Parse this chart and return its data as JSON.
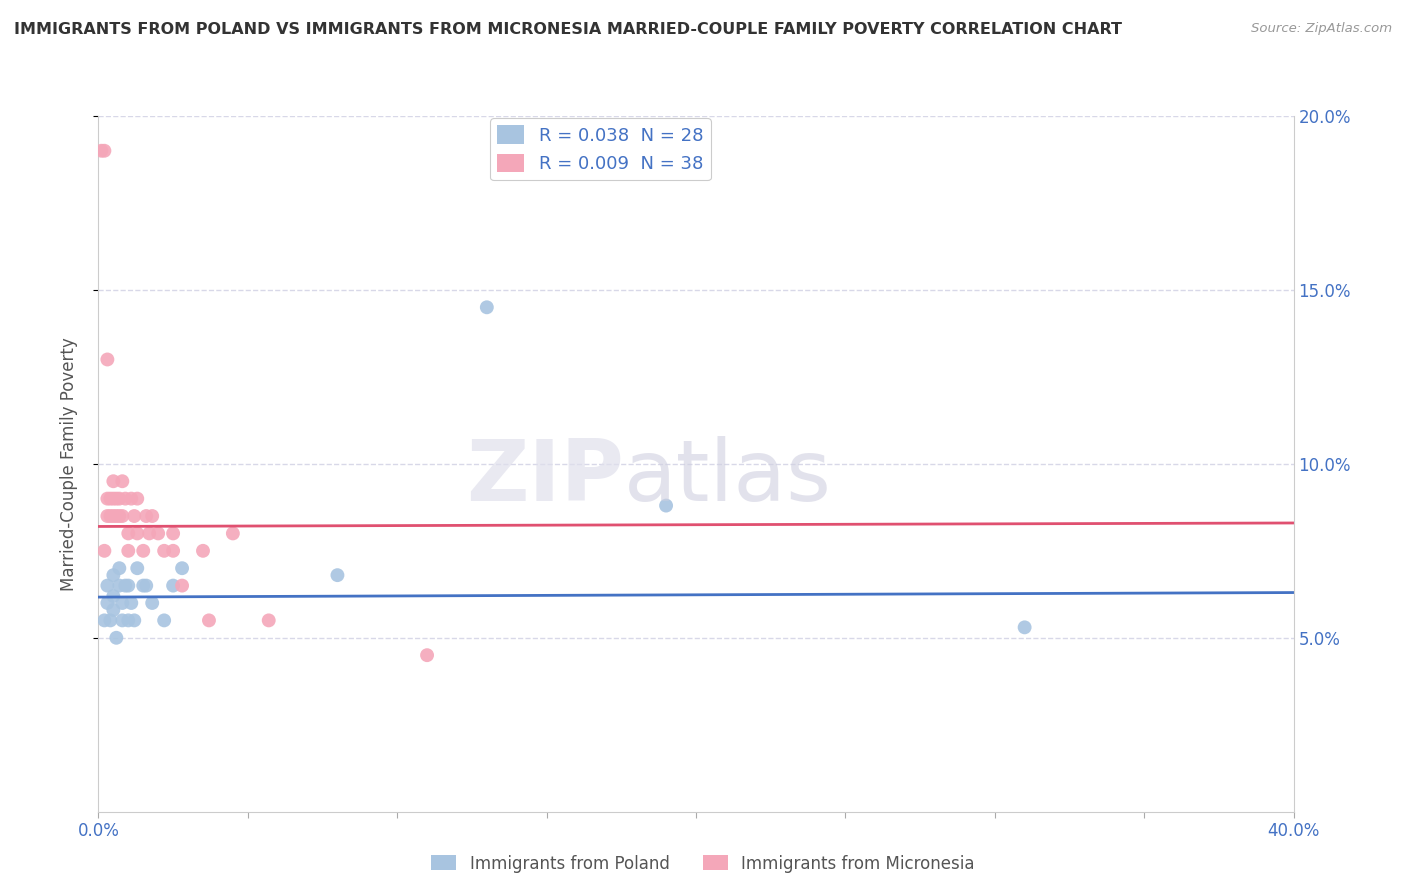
{
  "title": "IMMIGRANTS FROM POLAND VS IMMIGRANTS FROM MICRONESIA MARRIED-COUPLE FAMILY POVERTY CORRELATION CHART",
  "source": "Source: ZipAtlas.com",
  "ylabel_label": "Married-Couple Family Poverty",
  "legend_label1": "Immigrants from Poland",
  "legend_label2": "Immigrants from Micronesia",
  "R_poland": 0.038,
  "N_poland": 28,
  "R_micronesia": 0.009,
  "N_micronesia": 38,
  "xlim": [
    0.0,
    0.4
  ],
  "ylim": [
    0.0,
    0.2
  ],
  "background_color": "#ffffff",
  "grid_color": "#d8d8e8",
  "color_poland": "#a8c4e0",
  "color_micronesia": "#f4a7b9",
  "line_color_poland": "#4472c4",
  "line_color_micronesia": "#e05070",
  "poland_x": [
    0.002,
    0.003,
    0.003,
    0.004,
    0.005,
    0.005,
    0.005,
    0.006,
    0.007,
    0.007,
    0.008,
    0.008,
    0.009,
    0.01,
    0.01,
    0.011,
    0.012,
    0.013,
    0.015,
    0.016,
    0.018,
    0.022,
    0.025,
    0.028,
    0.08,
    0.13,
    0.19,
    0.31
  ],
  "poland_y": [
    0.055,
    0.06,
    0.065,
    0.055,
    0.058,
    0.062,
    0.068,
    0.05,
    0.07,
    0.065,
    0.055,
    0.06,
    0.065,
    0.065,
    0.055,
    0.06,
    0.055,
    0.07,
    0.065,
    0.065,
    0.06,
    0.055,
    0.065,
    0.07,
    0.068,
    0.145,
    0.088,
    0.053
  ],
  "micronesia_x": [
    0.001,
    0.002,
    0.002,
    0.003,
    0.003,
    0.003,
    0.004,
    0.004,
    0.005,
    0.005,
    0.005,
    0.006,
    0.006,
    0.007,
    0.007,
    0.008,
    0.008,
    0.009,
    0.01,
    0.01,
    0.011,
    0.012,
    0.013,
    0.013,
    0.015,
    0.016,
    0.017,
    0.018,
    0.02,
    0.022,
    0.025,
    0.025,
    0.028,
    0.035,
    0.037,
    0.045,
    0.057,
    0.11
  ],
  "micronesia_y": [
    0.19,
    0.19,
    0.075,
    0.085,
    0.09,
    0.13,
    0.085,
    0.09,
    0.085,
    0.09,
    0.095,
    0.085,
    0.09,
    0.09,
    0.085,
    0.095,
    0.085,
    0.09,
    0.075,
    0.08,
    0.09,
    0.085,
    0.09,
    0.08,
    0.075,
    0.085,
    0.08,
    0.085,
    0.08,
    0.075,
    0.08,
    0.075,
    0.065,
    0.075,
    0.055,
    0.08,
    0.055,
    0.045
  ],
  "trend_poland": [
    0.0617,
    0.063
  ],
  "trend_micronesia": [
    0.082,
    0.083
  ],
  "trend_x": [
    0.0,
    0.4
  ]
}
